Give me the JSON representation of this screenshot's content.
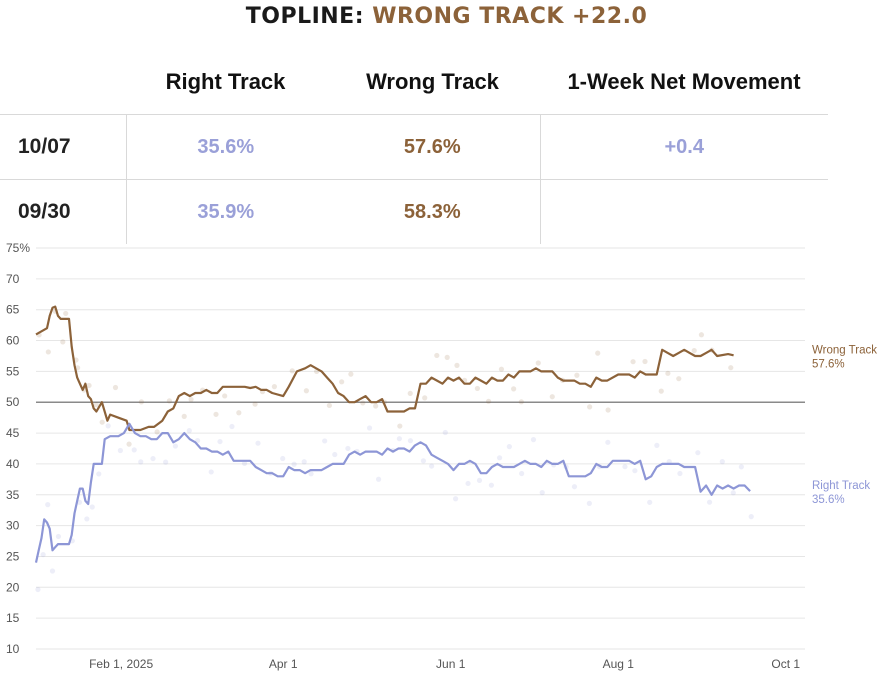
{
  "topline": {
    "label": "TOPLINE:",
    "value": "WRONG TRACK +22.0"
  },
  "table": {
    "headers": [
      "",
      "Right Track",
      "Wrong Track",
      "1-Week Net Movement"
    ],
    "rows": [
      {
        "date": "10/07",
        "right": "35.6%",
        "wrong": "57.6%",
        "net": "+0.4"
      },
      {
        "date": "09/30",
        "right": "35.9%",
        "wrong": "58.3%",
        "net": ""
      }
    ]
  },
  "colors": {
    "right": "#8d96d6",
    "wrong": "#8c6239",
    "grid": "#e6e6e6",
    "baseline": "#8a8a8a",
    "axis_text": "#555555"
  },
  "chart_data": {
    "type": "line",
    "x_labels": [
      "Feb 1, 2025",
      "Apr 1",
      "Jun 1",
      "Aug 1",
      "Oct 1"
    ],
    "x_label_days": [
      31,
      90,
      151,
      212,
      273
    ],
    "x_range": [
      0,
      280
    ],
    "y_ticks": [
      "75%",
      "70",
      "65",
      "60",
      "55",
      "50",
      "45",
      "40",
      "35",
      "30",
      "25",
      "20",
      "15",
      "10"
    ],
    "ylim": [
      10,
      75
    ],
    "reference_line": 50,
    "series": [
      {
        "name": "Wrong Track",
        "end_label": "Wrong Track",
        "end_value": "57.6%",
        "points": [
          [
            0,
            61
          ],
          [
            2,
            61.5
          ],
          [
            4,
            62
          ],
          [
            5,
            64
          ],
          [
            6,
            65.3
          ],
          [
            7,
            65.5
          ],
          [
            8,
            64
          ],
          [
            9,
            63.5
          ],
          [
            10,
            63.5
          ],
          [
            12,
            63.5
          ],
          [
            13,
            59
          ],
          [
            14,
            56
          ],
          [
            15,
            54
          ],
          [
            16,
            53
          ],
          [
            17,
            52
          ],
          [
            18,
            53
          ],
          [
            19,
            51
          ],
          [
            20,
            50.5
          ],
          [
            21,
            49
          ],
          [
            22,
            48.5
          ],
          [
            24,
            50
          ],
          [
            26,
            47
          ],
          [
            27,
            48
          ],
          [
            30,
            47.5
          ],
          [
            33,
            47
          ],
          [
            34,
            45.5
          ],
          [
            38,
            45.5
          ],
          [
            41,
            46
          ],
          [
            43,
            46
          ],
          [
            46,
            47
          ],
          [
            48,
            48.5
          ],
          [
            50,
            49
          ],
          [
            52,
            51
          ],
          [
            54,
            51.5
          ],
          [
            56,
            51
          ],
          [
            58,
            51.5
          ],
          [
            60,
            51.5
          ],
          [
            62,
            52
          ],
          [
            64,
            51.5
          ],
          [
            66,
            51.5
          ],
          [
            68,
            52.5
          ],
          [
            70,
            52.5
          ],
          [
            72,
            52.5
          ],
          [
            76,
            52.5
          ],
          [
            78,
            52.3
          ],
          [
            80,
            52.5
          ],
          [
            82,
            52
          ],
          [
            84,
            52
          ],
          [
            86,
            51.5
          ],
          [
            90,
            51
          ],
          [
            92,
            52.5
          ],
          [
            95,
            55
          ],
          [
            98,
            55.5
          ],
          [
            100,
            56
          ],
          [
            102,
            55.5
          ],
          [
            104,
            55
          ],
          [
            106,
            54
          ],
          [
            108,
            53
          ],
          [
            110,
            51.5
          ],
          [
            112,
            51
          ],
          [
            114,
            50
          ],
          [
            116,
            50
          ],
          [
            118,
            50.5
          ],
          [
            120,
            51
          ],
          [
            122,
            50
          ],
          [
            124,
            50
          ],
          [
            126,
            50.5
          ],
          [
            128,
            48.5
          ],
          [
            132,
            48.5
          ],
          [
            134,
            48.5
          ],
          [
            136,
            49
          ],
          [
            138,
            49
          ],
          [
            140,
            53
          ],
          [
            142,
            53
          ],
          [
            144,
            54
          ],
          [
            146,
            53.5
          ],
          [
            148,
            53
          ],
          [
            150,
            54
          ],
          [
            152,
            53.5
          ],
          [
            154,
            54
          ],
          [
            156,
            53
          ],
          [
            158,
            53
          ],
          [
            160,
            54
          ],
          [
            162,
            53.5
          ],
          [
            164,
            53
          ],
          [
            166,
            54
          ],
          [
            168,
            53.5
          ],
          [
            170,
            53.5
          ],
          [
            172,
            54.5
          ],
          [
            174,
            54
          ],
          [
            176,
            55
          ],
          [
            180,
            55
          ],
          [
            182,
            55.5
          ],
          [
            184,
            55
          ],
          [
            186,
            55
          ],
          [
            188,
            55
          ],
          [
            190,
            54
          ],
          [
            192,
            53.5
          ],
          [
            196,
            53.5
          ],
          [
            198,
            53
          ],
          [
            200,
            53
          ],
          [
            202,
            52.5
          ],
          [
            204,
            54
          ],
          [
            206,
            53.5
          ],
          [
            208,
            53.5
          ],
          [
            212,
            54.5
          ],
          [
            216,
            54.5
          ],
          [
            218,
            54
          ],
          [
            220,
            55
          ],
          [
            222,
            54.5
          ],
          [
            226,
            54.5
          ],
          [
            228,
            58.5
          ],
          [
            230,
            58
          ],
          [
            232,
            57.5
          ],
          [
            234,
            58
          ],
          [
            236,
            58.5
          ],
          [
            238,
            58
          ],
          [
            240,
            57.5
          ],
          [
            242,
            57.5
          ],
          [
            244,
            58
          ],
          [
            246,
            58.5
          ],
          [
            248,
            57.5
          ],
          [
            252,
            57.8
          ],
          [
            254,
            57.6
          ]
        ]
      },
      {
        "name": "Right Track",
        "end_label": "Right Track",
        "end_value": "35.6%",
        "points": [
          [
            0,
            24
          ],
          [
            1,
            26
          ],
          [
            2,
            28
          ],
          [
            3,
            31
          ],
          [
            4,
            30.5
          ],
          [
            5,
            29.5
          ],
          [
            6,
            26
          ],
          [
            7,
            26.5
          ],
          [
            8,
            27
          ],
          [
            12,
            27
          ],
          [
            13,
            28.5
          ],
          [
            14,
            32
          ],
          [
            15,
            34
          ],
          [
            16,
            36
          ],
          [
            17,
            36
          ],
          [
            18,
            34
          ],
          [
            19,
            33.5
          ],
          [
            20,
            37
          ],
          [
            21,
            40
          ],
          [
            24,
            40
          ],
          [
            25,
            44
          ],
          [
            27,
            44.5
          ],
          [
            30,
            44.5
          ],
          [
            32,
            45
          ],
          [
            34,
            46.5
          ],
          [
            36,
            45
          ],
          [
            38,
            44.5
          ],
          [
            40,
            44.5
          ],
          [
            42,
            44
          ],
          [
            44,
            44
          ],
          [
            46,
            45
          ],
          [
            48,
            45
          ],
          [
            50,
            43.5
          ],
          [
            52,
            44
          ],
          [
            54,
            45
          ],
          [
            56,
            44
          ],
          [
            58,
            43.5
          ],
          [
            60,
            42.5
          ],
          [
            62,
            42.5
          ],
          [
            64,
            42
          ],
          [
            66,
            42
          ],
          [
            68,
            41.5
          ],
          [
            70,
            42
          ],
          [
            72,
            40.5
          ],
          [
            74,
            40.5
          ],
          [
            78,
            40.5
          ],
          [
            80,
            39.5
          ],
          [
            82,
            39
          ],
          [
            84,
            38.5
          ],
          [
            86,
            38.5
          ],
          [
            88,
            38
          ],
          [
            90,
            38
          ],
          [
            92,
            39.5
          ],
          [
            94,
            39
          ],
          [
            96,
            39
          ],
          [
            98,
            38.5
          ],
          [
            100,
            39
          ],
          [
            102,
            39
          ],
          [
            104,
            39
          ],
          [
            106,
            39.5
          ],
          [
            108,
            40
          ],
          [
            110,
            40
          ],
          [
            112,
            40
          ],
          [
            114,
            41.5
          ],
          [
            116,
            42
          ],
          [
            118,
            41.5
          ],
          [
            120,
            42
          ],
          [
            122,
            42
          ],
          [
            124,
            42
          ],
          [
            126,
            41.5
          ],
          [
            128,
            42.5
          ],
          [
            130,
            42
          ],
          [
            132,
            42.5
          ],
          [
            134,
            42.5
          ],
          [
            136,
            42
          ],
          [
            138,
            43
          ],
          [
            140,
            43.5
          ],
          [
            142,
            43
          ],
          [
            144,
            41.5
          ],
          [
            146,
            41
          ],
          [
            148,
            40.5
          ],
          [
            150,
            40
          ],
          [
            152,
            39
          ],
          [
            154,
            40
          ],
          [
            156,
            40
          ],
          [
            158,
            40.5
          ],
          [
            160,
            40
          ],
          [
            162,
            38.5
          ],
          [
            164,
            38.5
          ],
          [
            166,
            39.5
          ],
          [
            168,
            40
          ],
          [
            170,
            39.5
          ],
          [
            172,
            39.5
          ],
          [
            174,
            39.5
          ],
          [
            176,
            40
          ],
          [
            178,
            40.5
          ],
          [
            180,
            40
          ],
          [
            182,
            40
          ],
          [
            184,
            39.5
          ],
          [
            186,
            40.5
          ],
          [
            188,
            40
          ],
          [
            190,
            40
          ],
          [
            192,
            40.5
          ],
          [
            194,
            38
          ],
          [
            196,
            38
          ],
          [
            198,
            38
          ],
          [
            200,
            38
          ],
          [
            202,
            38.5
          ],
          [
            204,
            40
          ],
          [
            206,
            39.5
          ],
          [
            208,
            39.5
          ],
          [
            210,
            40.5
          ],
          [
            214,
            40.5
          ],
          [
            216,
            40.5
          ],
          [
            218,
            40
          ],
          [
            220,
            40.5
          ],
          [
            222,
            37.5
          ],
          [
            224,
            38
          ],
          [
            226,
            39.5
          ],
          [
            228,
            40
          ],
          [
            230,
            40
          ],
          [
            232,
            40
          ],
          [
            234,
            40
          ],
          [
            236,
            39.5
          ],
          [
            240,
            39.5
          ],
          [
            242,
            35.5
          ],
          [
            244,
            36.5
          ],
          [
            246,
            35
          ],
          [
            248,
            36.5
          ],
          [
            250,
            36
          ],
          [
            252,
            36.5
          ],
          [
            254,
            36
          ],
          [
            256,
            36.5
          ],
          [
            258,
            36.5
          ],
          [
            260,
            35.6
          ]
        ]
      }
    ]
  }
}
